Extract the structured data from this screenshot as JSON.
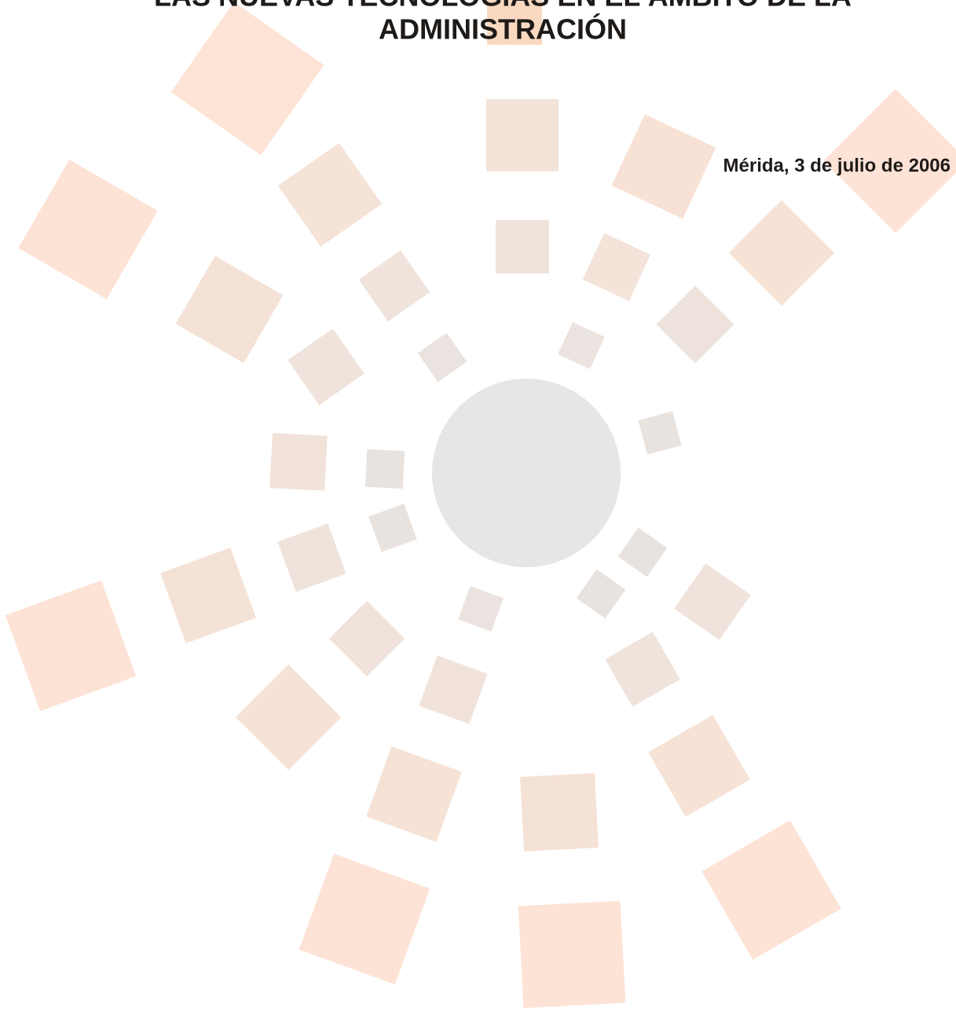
{
  "header": {
    "title_lines": [
      "LAS NUEVAS TECNOLOGÍAS EN EL ÁMBITO DE LA",
      "ADMINISTRACIÓN"
    ],
    "date": "Mérida, 3 de julio de 2006"
  }
}
